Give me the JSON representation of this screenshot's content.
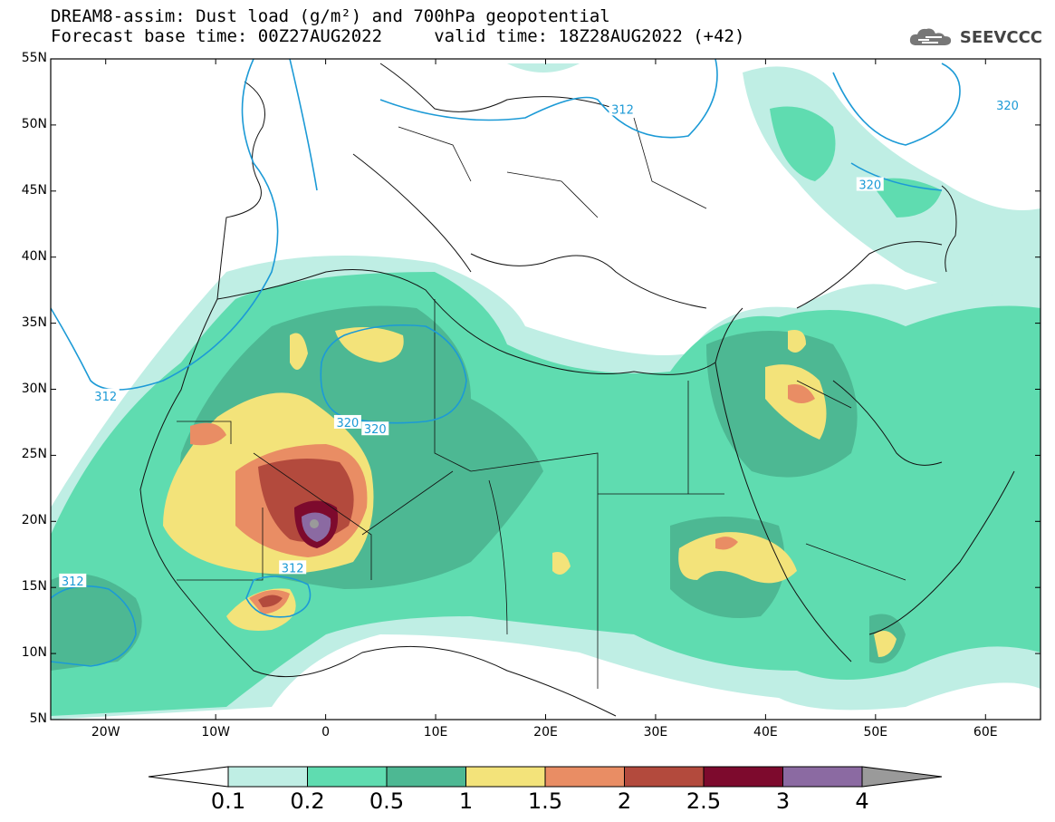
{
  "title_line1": "DREAM8-assim: Dust load (g/m²) and 700hPa geopotential",
  "title_line2": "Forecast base time: 00Z27AUG2022     valid time: 18Z28AUG2022 (+42)",
  "logo_text": "SEEVCCC",
  "logo_icon": "cloud-icon",
  "axes": {
    "lon_ticks": [
      "20W",
      "10W",
      "0",
      "10E",
      "20E",
      "30E",
      "40E",
      "50E",
      "60E"
    ],
    "lat_ticks": [
      "55N",
      "50N",
      "45N",
      "40N",
      "35N",
      "30N",
      "25N",
      "20N",
      "15N",
      "10N",
      "5N"
    ],
    "lon_range": [
      -25,
      65
    ],
    "lat_range": [
      5,
      55
    ]
  },
  "colorbar": {
    "labels": [
      "0.1",
      "0.2",
      "0.5",
      "1",
      "1.5",
      "2",
      "2.5",
      "3",
      "4"
    ],
    "colors": [
      "#bfeee4",
      "#5fdcb0",
      "#4db893",
      "#f3e37a",
      "#e98d64",
      "#b34a3d",
      "#7d0a2d",
      "#8b6aa2"
    ],
    "under_color": "#ffffff",
    "over_color": "#9a9a9a"
  },
  "contours": {
    "color": "#1c9ad6",
    "labels": [
      {
        "text": "312",
        "lon": 27,
        "lat": 51.2
      },
      {
        "text": "320",
        "lon": 62,
        "lat": 51.5
      },
      {
        "text": "320",
        "lon": 49.5,
        "lat": 45.5
      },
      {
        "text": "312",
        "lon": -20,
        "lat": 29.5
      },
      {
        "text": "320",
        "lon": 2,
        "lat": 27.5
      },
      {
        "text": "320",
        "lon": 4.5,
        "lat": 27
      },
      {
        "text": "312",
        "lon": -23,
        "lat": 15.5
      },
      {
        "text": "312",
        "lon": -3,
        "lat": 16.5
      }
    ]
  }
}
